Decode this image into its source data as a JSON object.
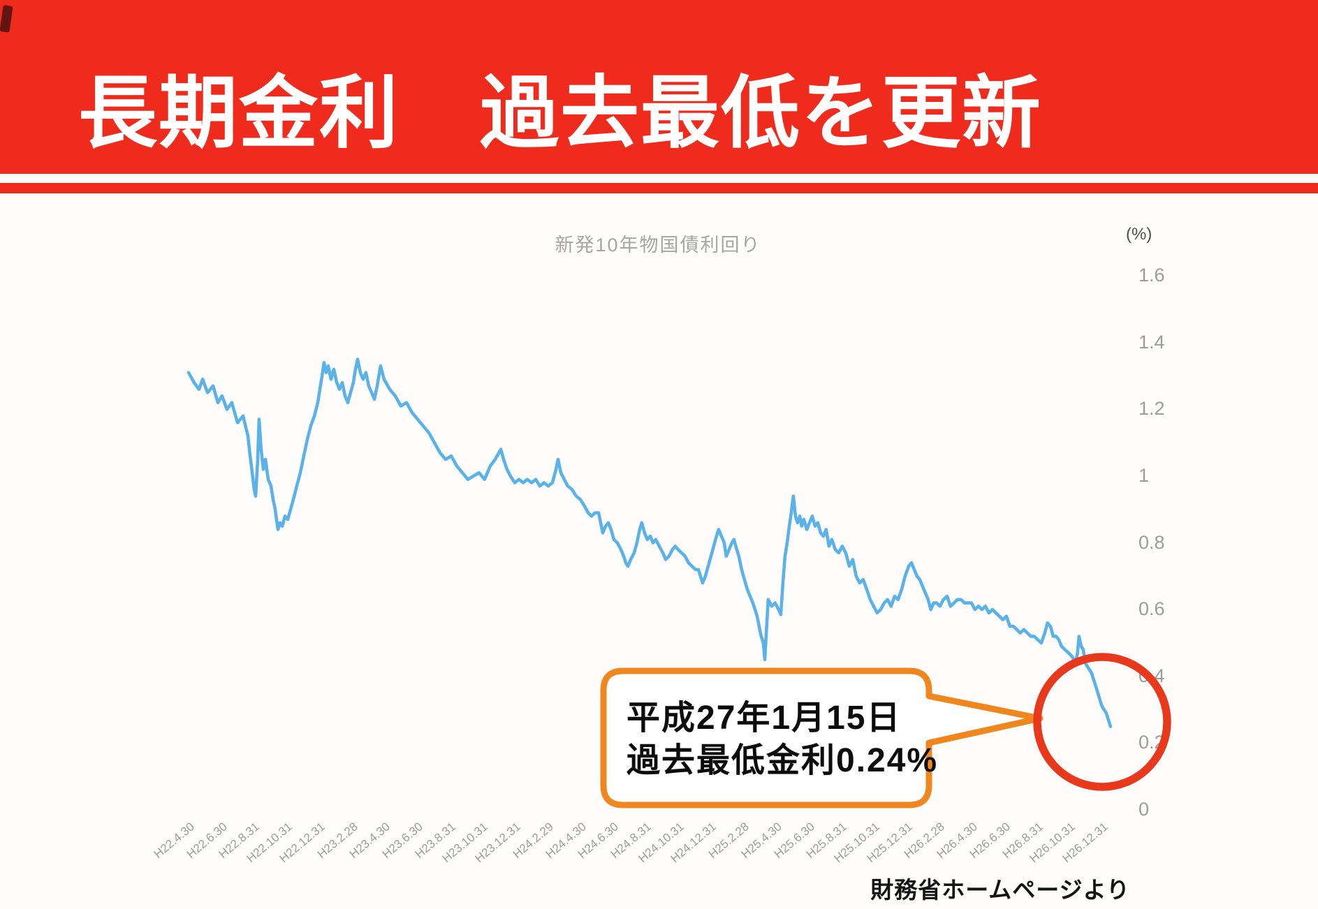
{
  "banner": {
    "title": "長期金利　過去最低を更新",
    "bg_color": "#ee2b1c",
    "text_color": "#ffffff"
  },
  "chart_data": {
    "type": "line",
    "title": "新発10年物国債利回り",
    "unit_label": "(%)",
    "ylim": [
      0,
      1.6
    ],
    "grid": false,
    "legend": "none",
    "y_axis_side": "right",
    "y_tick_labels": [
      "1.6",
      "1.4",
      "1.2",
      "1",
      "0.8",
      "0.6",
      "0.4",
      "0.2",
      "0"
    ],
    "y_tick_values": [
      1.6,
      1.4,
      1.2,
      1,
      0.8,
      0.6,
      0.4,
      0.2,
      0
    ],
    "x_tick_labels": [
      "H22.4.30",
      "H22.6.30",
      "H22.8.31",
      "H22.10.31",
      "H22.12.31",
      "H23.2.28",
      "H23.4.30",
      "H23.6.30",
      "H23.8.31",
      "H23.10.31",
      "H23.12.31",
      "H24.2.29",
      "H24.4.30",
      "H24.6.30",
      "H24.8.31",
      "H24.10.31",
      "H24.12.31",
      "H25.2.28",
      "H25.4.30",
      "H25.6.30",
      "H25.8.31",
      "H25.10.31",
      "H25.12.31",
      "H26.2.28",
      "H26.4.30",
      "H26.6.30",
      "H26.8.31",
      "H26.10.31",
      "H26.12.31"
    ],
    "x_unit": "months_since_H22.4.30",
    "series": [
      {
        "name": "新発10年物国債利回り",
        "color": "#5ab2e8",
        "points": [
          [
            0,
            1.31
          ],
          [
            0.34,
            1.28
          ],
          [
            0.64,
            1.26
          ],
          [
            0.86,
            1.29
          ],
          [
            1.16,
            1.25
          ],
          [
            1.5,
            1.27
          ],
          [
            1.8,
            1.22
          ],
          [
            2.05,
            1.24
          ],
          [
            2.35,
            1.2
          ],
          [
            2.65,
            1.22
          ],
          [
            3,
            1.16
          ],
          [
            3.34,
            1.18
          ],
          [
            3.64,
            1.12
          ],
          [
            3.77,
            1.06
          ],
          [
            3.9,
            1.01
          ],
          [
            4.02,
            0.96
          ],
          [
            4.11,
            0.94
          ],
          [
            4.24,
            1.05
          ],
          [
            4.32,
            1.17
          ],
          [
            4.45,
            1.08
          ],
          [
            4.58,
            1.02
          ],
          [
            4.71,
            1.05
          ],
          [
            4.88,
            0.99
          ],
          [
            5.05,
            0.97
          ],
          [
            5.18,
            0.93
          ],
          [
            5.31,
            0.9
          ],
          [
            5.39,
            0.87
          ],
          [
            5.48,
            0.84
          ],
          [
            5.61,
            0.86
          ],
          [
            5.74,
            0.85
          ],
          [
            5.91,
            0.88
          ],
          [
            6.08,
            0.87
          ],
          [
            6.25,
            0.9
          ],
          [
            6.42,
            0.93
          ],
          [
            6.63,
            0.97
          ],
          [
            6.85,
            1.01
          ],
          [
            7.06,
            1.06
          ],
          [
            7.28,
            1.11
          ],
          [
            7.49,
            1.15
          ],
          [
            7.71,
            1.18
          ],
          [
            7.92,
            1.22
          ],
          [
            8.05,
            1.26
          ],
          [
            8.18,
            1.3
          ],
          [
            8.3,
            1.34
          ],
          [
            8.43,
            1.31
          ],
          [
            8.56,
            1.33
          ],
          [
            8.73,
            1.29
          ],
          [
            8.9,
            1.32
          ],
          [
            9.08,
            1.28
          ],
          [
            9.25,
            1.26
          ],
          [
            9.42,
            1.28
          ],
          [
            9.59,
            1.24
          ],
          [
            9.76,
            1.22
          ],
          [
            9.93,
            1.25
          ],
          [
            10.1,
            1.28
          ],
          [
            10.23,
            1.32
          ],
          [
            10.36,
            1.35
          ],
          [
            10.53,
            1.31
          ],
          [
            10.7,
            1.29
          ],
          [
            10.87,
            1.31
          ],
          [
            11.04,
            1.27
          ],
          [
            11.22,
            1.25
          ],
          [
            11.39,
            1.23
          ],
          [
            11.56,
            1.27
          ],
          [
            11.77,
            1.33
          ],
          [
            11.98,
            1.29
          ],
          [
            12.33,
            1.26
          ],
          [
            12.67,
            1.24
          ],
          [
            13.01,
            1.21
          ],
          [
            13.36,
            1.22
          ],
          [
            13.7,
            1.19
          ],
          [
            14.04,
            1.17
          ],
          [
            14.38,
            1.15
          ],
          [
            14.73,
            1.13
          ],
          [
            15.07,
            1.1
          ],
          [
            15.41,
            1.07
          ],
          [
            15.75,
            1.05
          ],
          [
            16.1,
            1.06
          ],
          [
            16.44,
            1.03
          ],
          [
            16.78,
            1.01
          ],
          [
            17.12,
            0.99
          ],
          [
            17.46,
            1.0
          ],
          [
            17.8,
            1.01
          ],
          [
            18.14,
            0.99
          ],
          [
            18.49,
            1.03
          ],
          [
            18.79,
            1.05
          ],
          [
            19.14,
            1.08
          ],
          [
            19.31,
            1.05
          ],
          [
            19.52,
            1.02
          ],
          [
            19.73,
            1.0
          ],
          [
            19.99,
            0.98
          ],
          [
            20.25,
            0.99
          ],
          [
            20.51,
            0.98
          ],
          [
            20.76,
            0.99
          ],
          [
            21.02,
            0.98
          ],
          [
            21.28,
            0.99
          ],
          [
            21.53,
            0.97
          ],
          [
            21.79,
            0.98
          ],
          [
            22.05,
            0.97
          ],
          [
            22.3,
            0.98
          ],
          [
            22.52,
            1.02
          ],
          [
            22.65,
            1.05
          ],
          [
            22.82,
            1.01
          ],
          [
            23.03,
            0.99
          ],
          [
            23.24,
            0.97
          ],
          [
            23.5,
            0.96
          ],
          [
            23.76,
            0.94
          ],
          [
            24.01,
            0.93
          ],
          [
            24.27,
            0.91
          ],
          [
            24.49,
            0.89
          ],
          [
            24.7,
            0.88
          ],
          [
            24.91,
            0.89
          ],
          [
            25.13,
            0.89
          ],
          [
            25.26,
            0.86
          ],
          [
            25.39,
            0.83
          ],
          [
            25.56,
            0.85
          ],
          [
            25.73,
            0.86
          ],
          [
            25.9,
            0.84
          ],
          [
            26.07,
            0.81
          ],
          [
            26.28,
            0.8
          ],
          [
            26.5,
            0.78
          ],
          [
            26.67,
            0.76
          ],
          [
            26.8,
            0.74
          ],
          [
            26.93,
            0.73
          ],
          [
            27.1,
            0.75
          ],
          [
            27.31,
            0.77
          ],
          [
            27.48,
            0.8
          ],
          [
            27.65,
            0.84
          ],
          [
            27.78,
            0.86
          ],
          [
            27.95,
            0.83
          ],
          [
            28.12,
            0.81
          ],
          [
            28.3,
            0.82
          ],
          [
            28.47,
            0.8
          ],
          [
            28.64,
            0.81
          ],
          [
            28.85,
            0.79
          ],
          [
            29.07,
            0.77
          ],
          [
            29.24,
            0.75
          ],
          [
            29.45,
            0.76
          ],
          [
            29.66,
            0.78
          ],
          [
            29.83,
            0.79
          ],
          [
            30.0,
            0.78
          ],
          [
            30.22,
            0.77
          ],
          [
            30.43,
            0.76
          ],
          [
            30.64,
            0.74
          ],
          [
            30.86,
            0.73
          ],
          [
            31.07,
            0.72
          ],
          [
            31.25,
            0.72
          ],
          [
            31.38,
            0.7
          ],
          [
            31.51,
            0.68
          ],
          [
            31.68,
            0.7
          ],
          [
            31.85,
            0.73
          ],
          [
            32.02,
            0.76
          ],
          [
            32.19,
            0.79
          ],
          [
            32.36,
            0.82
          ],
          [
            32.49,
            0.84
          ],
          [
            32.66,
            0.82
          ],
          [
            32.83,
            0.8
          ],
          [
            32.96,
            0.76
          ],
          [
            33.13,
            0.78
          ],
          [
            33.3,
            0.8
          ],
          [
            33.43,
            0.81
          ],
          [
            33.6,
            0.78
          ],
          [
            33.73,
            0.76
          ],
          [
            33.9,
            0.72
          ],
          [
            34.07,
            0.69
          ],
          [
            34.25,
            0.66
          ],
          [
            34.42,
            0.64
          ],
          [
            34.59,
            0.62
          ],
          [
            34.72,
            0.6
          ],
          [
            34.85,
            0.58
          ],
          [
            34.97,
            0.55
          ],
          [
            35.1,
            0.52
          ],
          [
            35.23,
            0.5
          ],
          [
            35.32,
            0.45
          ],
          [
            35.4,
            0.52
          ],
          [
            35.53,
            0.63
          ],
          [
            35.74,
            0.61
          ],
          [
            35.95,
            0.62
          ],
          [
            36.17,
            0.6
          ],
          [
            36.3,
            0.585
          ],
          [
            36.43,
            0.68
          ],
          [
            36.56,
            0.76
          ],
          [
            36.69,
            0.8
          ],
          [
            36.82,
            0.85
          ],
          [
            36.94,
            0.89
          ],
          [
            37.07,
            0.94
          ],
          [
            37.2,
            0.88
          ],
          [
            37.33,
            0.86
          ],
          [
            37.46,
            0.88
          ],
          [
            37.58,
            0.85
          ],
          [
            37.71,
            0.87
          ],
          [
            37.89,
            0.84
          ],
          [
            38.06,
            0.86
          ],
          [
            38.23,
            0.88
          ],
          [
            38.4,
            0.85
          ],
          [
            38.57,
            0.86
          ],
          [
            38.74,
            0.83
          ],
          [
            38.91,
            0.82
          ],
          [
            39.08,
            0.84
          ],
          [
            39.25,
            0.79
          ],
          [
            39.43,
            0.81
          ],
          [
            39.64,
            0.78
          ],
          [
            39.85,
            0.77
          ],
          [
            40.07,
            0.79
          ],
          [
            40.28,
            0.77
          ],
          [
            40.5,
            0.73
          ],
          [
            40.71,
            0.75
          ],
          [
            40.92,
            0.7
          ],
          [
            41.14,
            0.68
          ],
          [
            41.35,
            0.69
          ],
          [
            41.57,
            0.66
          ],
          [
            41.78,
            0.63
          ],
          [
            41.99,
            0.61
          ],
          [
            42.21,
            0.59
          ],
          [
            42.42,
            0.6
          ],
          [
            42.64,
            0.62
          ],
          [
            42.85,
            0.63
          ],
          [
            43.06,
            0.61
          ],
          [
            43.28,
            0.64
          ],
          [
            43.49,
            0.63
          ],
          [
            43.71,
            0.66
          ],
          [
            43.92,
            0.7
          ],
          [
            44.14,
            0.73
          ],
          [
            44.31,
            0.74
          ],
          [
            44.48,
            0.72
          ],
          [
            44.65,
            0.7
          ],
          [
            44.82,
            0.69
          ],
          [
            44.99,
            0.67
          ],
          [
            45.16,
            0.65
          ],
          [
            45.33,
            0.63
          ],
          [
            45.5,
            0.6
          ],
          [
            45.67,
            0.62
          ],
          [
            45.85,
            0.62
          ],
          [
            46.06,
            0.61
          ],
          [
            46.27,
            0.63
          ],
          [
            46.49,
            0.64
          ],
          [
            46.7,
            0.61
          ],
          [
            46.92,
            0.62
          ],
          [
            47.13,
            0.63
          ],
          [
            47.35,
            0.63
          ],
          [
            47.56,
            0.62
          ],
          [
            47.77,
            0.62
          ],
          [
            47.99,
            0.62
          ],
          [
            48.2,
            0.6
          ],
          [
            48.42,
            0.61
          ],
          [
            48.63,
            0.6
          ],
          [
            48.84,
            0.61
          ],
          [
            49.06,
            0.59
          ],
          [
            49.27,
            0.6
          ],
          [
            49.49,
            0.59
          ],
          [
            49.7,
            0.58
          ],
          [
            49.91,
            0.57
          ],
          [
            50.13,
            0.58
          ],
          [
            50.34,
            0.55
          ],
          [
            50.56,
            0.55
          ],
          [
            50.77,
            0.54
          ],
          [
            50.98,
            0.53
          ],
          [
            51.2,
            0.54
          ],
          [
            51.41,
            0.53
          ],
          [
            51.63,
            0.52
          ],
          [
            51.84,
            0.52
          ],
          [
            52.05,
            0.51
          ],
          [
            52.27,
            0.5
          ],
          [
            52.48,
            0.53
          ],
          [
            52.65,
            0.56
          ],
          [
            52.83,
            0.55
          ],
          [
            53.0,
            0.52
          ],
          [
            53.17,
            0.52
          ],
          [
            53.34,
            0.51
          ],
          [
            53.51,
            0.49
          ],
          [
            53.72,
            0.48
          ],
          [
            53.94,
            0.47
          ],
          [
            54.15,
            0.46
          ],
          [
            54.37,
            0.44
          ],
          [
            54.49,
            0.47
          ],
          [
            54.58,
            0.52
          ],
          [
            54.71,
            0.49
          ],
          [
            54.84,
            0.48
          ],
          [
            54.96,
            0.44
          ],
          [
            55.09,
            0.43
          ],
          [
            55.22,
            0.42
          ],
          [
            55.35,
            0.41
          ],
          [
            55.48,
            0.39
          ],
          [
            55.61,
            0.37
          ],
          [
            55.74,
            0.35
          ],
          [
            55.86,
            0.33
          ],
          [
            55.99,
            0.31
          ],
          [
            56.12,
            0.3
          ],
          [
            56.25,
            0.29
          ],
          [
            56.38,
            0.27
          ],
          [
            56.51,
            0.25
          ]
        ]
      }
    ],
    "annotation": {
      "label_line1": "平成27年1月15日",
      "label_line2": "過去最低金利0.24%",
      "min_rate_pct": 0.24,
      "bubble_border_color": "#f0871e",
      "highlight_circle_color": "#e8391d"
    },
    "source_note": "財務省ホームページより"
  }
}
